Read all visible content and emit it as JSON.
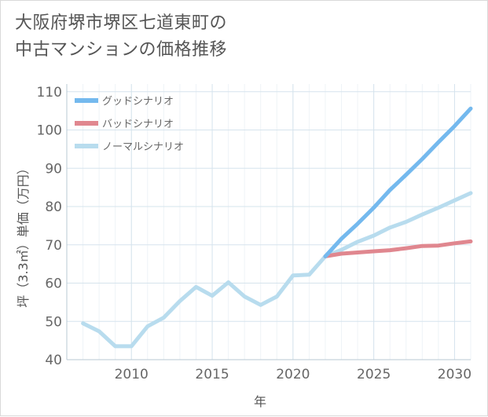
{
  "chart_data": {
    "type": "line",
    "title": "大阪府堺市堺区七道東町の\n中古マンションの価格推移",
    "xlabel": "年",
    "ylabel": "坪（3.3㎡）単価（万円）",
    "xlim": [
      2006,
      2031
    ],
    "ylim": [
      40,
      112
    ],
    "x_ticks": [
      2010,
      2015,
      2020,
      2025,
      2030
    ],
    "y_ticks": [
      40,
      50,
      60,
      70,
      80,
      90,
      100,
      110
    ],
    "grid": true,
    "legend_position": "top-left",
    "series": [
      {
        "name": "グッドシナリオ",
        "color": "#74b9ee",
        "x": [
          2022,
          2023,
          2024,
          2025,
          2026,
          2027,
          2028,
          2029,
          2030,
          2031
        ],
        "values": [
          67,
          71.6,
          75.5,
          79.7,
          84.3,
          88.3,
          92.4,
          96.8,
          101.0,
          105.6
        ]
      },
      {
        "name": "バッドシナリオ",
        "color": "#e0878f",
        "x": [
          2022,
          2023,
          2024,
          2025,
          2026,
          2027,
          2028,
          2029,
          2030,
          2031
        ],
        "values": [
          67,
          67.7,
          68.0,
          68.3,
          68.6,
          69.1,
          69.7,
          69.8,
          70.4,
          70.9
        ]
      },
      {
        "name": "ノーマルシナリオ",
        "color": "#b8dcee",
        "x": [
          2007,
          2008,
          2009,
          2010,
          2011,
          2012,
          2013,
          2014,
          2015,
          2016,
          2017,
          2018,
          2019,
          2020,
          2021,
          2022,
          2023,
          2024,
          2025,
          2026,
          2027,
          2028,
          2029,
          2030,
          2031
        ],
        "values": [
          49.5,
          47.4,
          43.5,
          43.5,
          48.7,
          51.0,
          55.3,
          59.0,
          56.7,
          60.2,
          56.5,
          54.3,
          56.5,
          62.0,
          62.2,
          67.0,
          68.7,
          70.8,
          72.4,
          74.5,
          76.0,
          77.9,
          79.7,
          81.6,
          83.5
        ]
      }
    ]
  }
}
